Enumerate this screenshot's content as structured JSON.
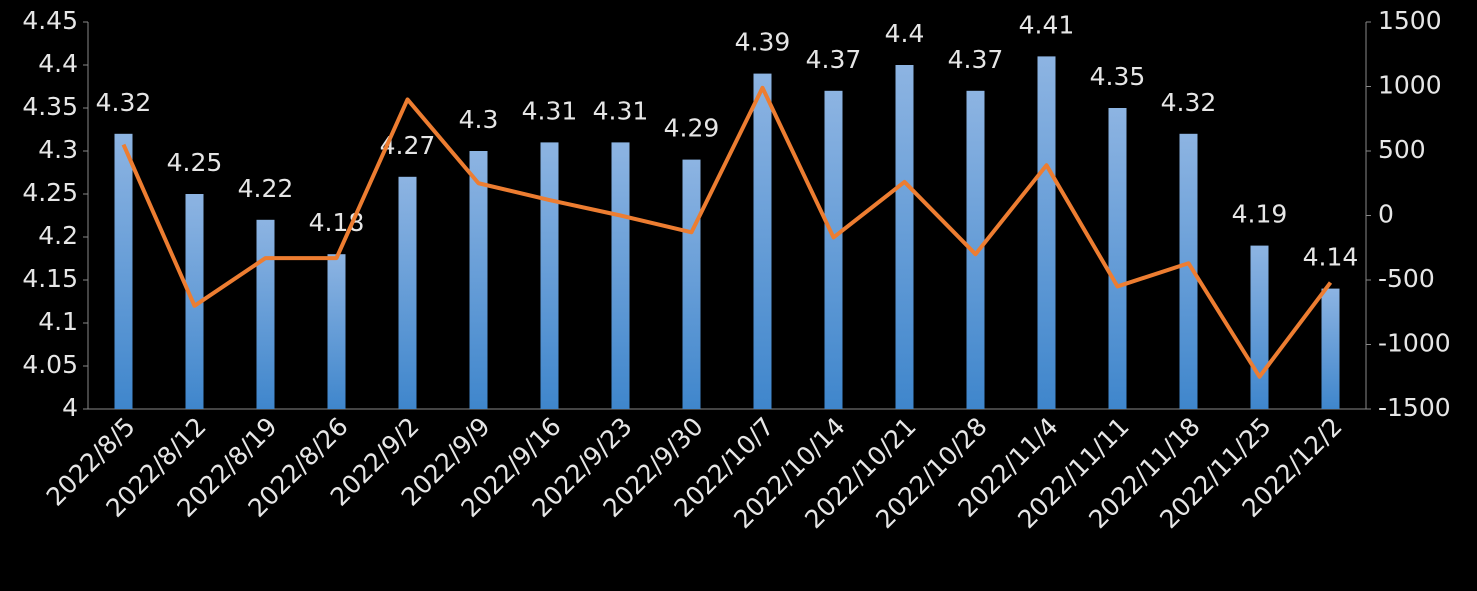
{
  "chart_data": {
    "type": "bar-line",
    "categories": [
      "2022/8/5",
      "2022/8/12",
      "2022/8/19",
      "2022/8/26",
      "2022/9/2",
      "2022/9/9",
      "2022/9/16",
      "2022/9/23",
      "2022/9/30",
      "2022/10/7",
      "2022/10/14",
      "2022/10/21",
      "2022/10/28",
      "2022/11/4",
      "2022/11/11",
      "2022/11/18",
      "2022/11/25",
      "2022/12/2"
    ],
    "series": [
      {
        "type": "bar",
        "color": "#5b9bd5",
        "values": [
          4.32,
          4.25,
          4.22,
          4.18,
          4.27,
          4.3,
          4.31,
          4.31,
          4.29,
          4.39,
          4.37,
          4.4,
          4.37,
          4.41,
          4.35,
          4.32,
          4.19,
          4.14
        ]
      },
      {
        "type": "line",
        "axis": "y2",
        "color": "#ed7d31",
        "values": [
          550,
          -700,
          -330,
          -330,
          900,
          250,
          120,
          0,
          -130,
          990,
          -170,
          260,
          -300,
          390,
          -550,
          -370,
          -1250,
          -520
        ]
      }
    ],
    "ylim": [
      4,
      4.45
    ],
    "yticks": [
      4,
      4.05,
      4.1,
      4.15,
      4.2,
      4.25,
      4.3,
      4.35,
      4.4,
      4.45
    ],
    "y2lim": [
      -1500,
      1500
    ],
    "y2ticks": [
      -1500,
      -1000,
      -500,
      0,
      500,
      1000,
      1500
    ]
  }
}
